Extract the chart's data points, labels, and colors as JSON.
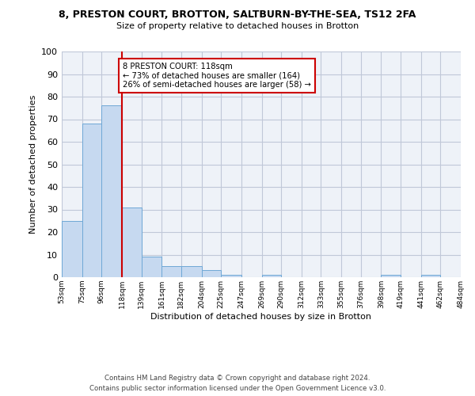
{
  "title_line1": "8, PRESTON COURT, BROTTON, SALTBURN-BY-THE-SEA, TS12 2FA",
  "title_line2": "Size of property relative to detached houses in Brotton",
  "xlabel": "Distribution of detached houses by size in Brotton",
  "ylabel": "Number of detached properties",
  "bins": [
    53,
    75,
    96,
    118,
    139,
    161,
    182,
    204,
    225,
    247,
    269,
    290,
    312,
    333,
    355,
    376,
    398,
    419,
    441,
    462,
    484
  ],
  "bar_heights": [
    25,
    68,
    76,
    31,
    9,
    5,
    5,
    3,
    1,
    0,
    1,
    0,
    0,
    0,
    0,
    0,
    1,
    0,
    1,
    0
  ],
  "bar_color": "#c6d9f0",
  "bar_edge_color": "#6fa8d6",
  "property_line_x": 118,
  "annotation_text": "8 PRESTON COURT: 118sqm\n← 73% of detached houses are smaller (164)\n26% of semi-detached houses are larger (58) →",
  "annotation_box_color": "#ffffff",
  "annotation_box_edge_color": "#cc0000",
  "vline_color": "#cc0000",
  "grid_color": "#c0c8d8",
  "background_color": "#eef2f8",
  "ylim": [
    0,
    100
  ],
  "yticks": [
    0,
    10,
    20,
    30,
    40,
    50,
    60,
    70,
    80,
    90,
    100
  ],
  "footer_line1": "Contains HM Land Registry data © Crown copyright and database right 2024.",
  "footer_line2": "Contains public sector information licensed under the Open Government Licence v3.0."
}
